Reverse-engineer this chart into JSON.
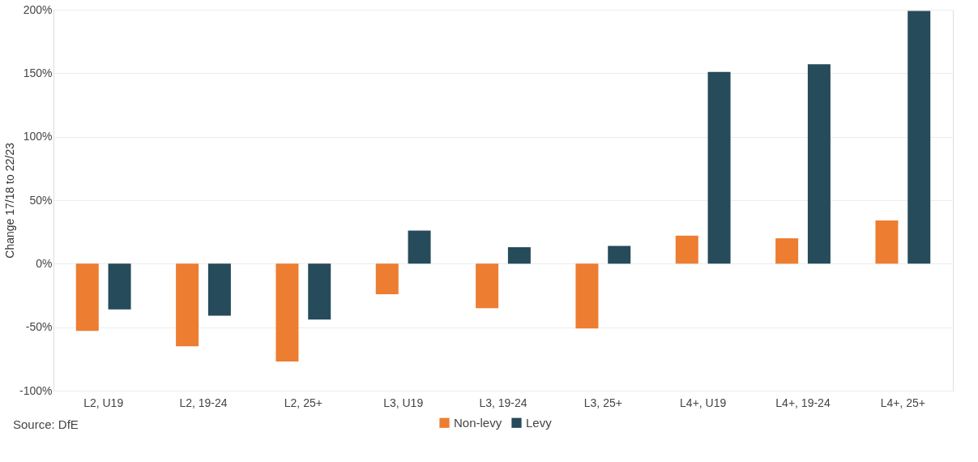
{
  "chart_data": {
    "type": "bar",
    "ylabel": "Change 17/18 to 22/23",
    "categories": [
      "L2, U19",
      "L2, 19-24",
      "L2, 25+",
      "L3, U19",
      "L3, 19-24",
      "L3, 25+",
      "L4+, U19",
      "L4+, 19-24",
      "L4+, 25+"
    ],
    "series": [
      {
        "name": "Non-levy",
        "color": "#ed7d31",
        "values": [
          -53,
          -65,
          -77,
          -24,
          -35,
          -51,
          22,
          20,
          34
        ]
      },
      {
        "name": "Levy",
        "color": "#264b5a",
        "values": [
          -36,
          -41,
          -44,
          26,
          13,
          14,
          151,
          157,
          199
        ]
      }
    ],
    "ylim": [
      -100,
      200
    ],
    "yticks": [
      {
        "value": -100,
        "label": "-100%"
      },
      {
        "value": -50,
        "label": "-50%"
      },
      {
        "value": 0,
        "label": "0%"
      },
      {
        "value": 50,
        "label": "50%"
      },
      {
        "value": 100,
        "label": "100%"
      },
      {
        "value": 150,
        "label": "150%"
      },
      {
        "value": 200,
        "label": "200%"
      }
    ],
    "grid": "y",
    "legend": "bottom",
    "annotations": [
      "Source: DfE"
    ]
  }
}
